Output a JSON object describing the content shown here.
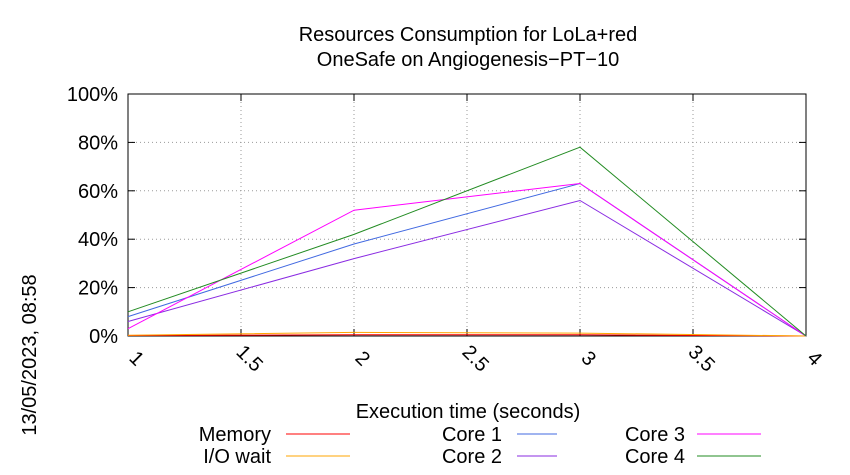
{
  "chart_data": {
    "type": "line",
    "title": "Resources Consumption for LoLa+red",
    "subtitle": "OneSafe on Angiogenesis−PT−10",
    "xlabel": "Execution time (seconds)",
    "ylabel": "",
    "side_label": "13/05/2023, 08:58",
    "xlim": [
      1,
      4
    ],
    "ylim": [
      0,
      100
    ],
    "x_ticks": [
      "1",
      "1.5",
      "2",
      "2.5",
      "3",
      "3.5",
      "4"
    ],
    "x_tick_values": [
      1,
      1.5,
      2,
      2.5,
      3,
      3.5,
      4
    ],
    "y_ticks": [
      "0%",
      "20%",
      "40%",
      "60%",
      "80%",
      "100%"
    ],
    "y_tick_values": [
      0,
      20,
      40,
      60,
      80,
      100
    ],
    "grid": true,
    "legend_position": "bottom",
    "x": [
      1,
      2,
      3,
      4
    ],
    "series": [
      {
        "name": "Memory",
        "color": "#ff0000",
        "values": [
          0.2,
          0.5,
          0.5,
          0
        ]
      },
      {
        "name": "I/O wait",
        "color": "#ffa500",
        "values": [
          0.3,
          1.5,
          1.2,
          0
        ]
      },
      {
        "name": "Core 1",
        "color": "#4169e1",
        "values": [
          8,
          38,
          63,
          0
        ]
      },
      {
        "name": "Core 2",
        "color": "#8a2be2",
        "values": [
          6,
          32,
          56,
          0
        ]
      },
      {
        "name": "Core 3",
        "color": "#ff00ff",
        "values": [
          3,
          52,
          63,
          0
        ]
      },
      {
        "name": "Core 4",
        "color": "#228b22",
        "values": [
          10,
          42,
          78,
          0
        ]
      }
    ]
  }
}
